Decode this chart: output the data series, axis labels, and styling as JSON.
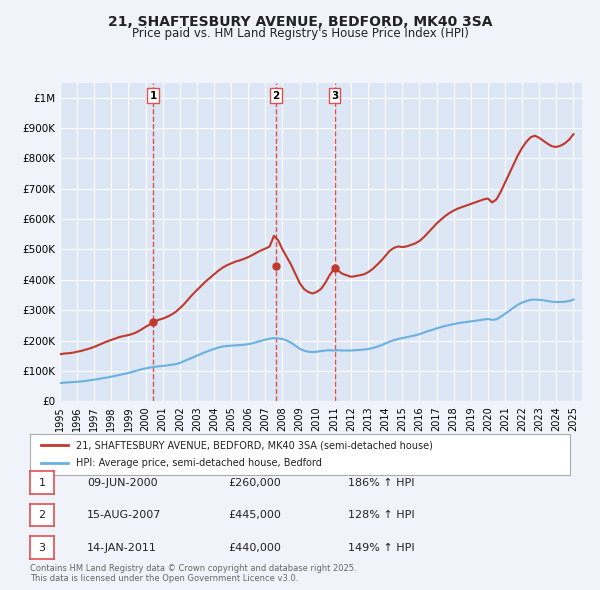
{
  "title": "21, SHAFTESBURY AVENUE, BEDFORD, MK40 3SA",
  "subtitle": "Price paid vs. HM Land Registry's House Price Index (HPI)",
  "background_color": "#f0f4fa",
  "plot_bg_color": "#dce6f5",
  "grid_color": "#ffffff",
  "xlim": [
    1995.0,
    2025.5
  ],
  "ylim": [
    0,
    1050000
  ],
  "yticks": [
    0,
    100000,
    200000,
    300000,
    400000,
    500000,
    600000,
    700000,
    800000,
    900000,
    1000000
  ],
  "ytick_labels": [
    "£0",
    "£100K",
    "£200K",
    "£300K",
    "£400K",
    "£500K",
    "£600K",
    "£700K",
    "£800K",
    "£900K",
    "£1M"
  ],
  "xticks": [
    1995,
    1996,
    1997,
    1998,
    1999,
    2000,
    2001,
    2002,
    2003,
    2004,
    2005,
    2006,
    2007,
    2008,
    2009,
    2010,
    2011,
    2012,
    2013,
    2014,
    2015,
    2016,
    2017,
    2018,
    2019,
    2020,
    2021,
    2022,
    2023,
    2024,
    2025
  ],
  "hpi_color": "#6ab0e0",
  "price_color": "#c0392b",
  "marker_color": "#c0392b",
  "vline_color": "#e05050",
  "legend1": "21, SHAFTESBURY AVENUE, BEDFORD, MK40 3SA (semi-detached house)",
  "legend2": "HPI: Average price, semi-detached house, Bedford",
  "transactions": [
    {
      "id": 1,
      "date": "09-JUN-2000",
      "year": 2000.44,
      "price": 260000,
      "pct": "186%",
      "dir": "↑"
    },
    {
      "id": 2,
      "date": "15-AUG-2007",
      "year": 2007.62,
      "price": 445000,
      "pct": "128%",
      "dir": "↑"
    },
    {
      "id": 3,
      "date": "14-JAN-2011",
      "year": 2011.04,
      "price": 440000,
      "pct": "149%",
      "dir": "↑"
    }
  ],
  "footnote": "Contains HM Land Registry data © Crown copyright and database right 2025.\nThis data is licensed under the Open Government Licence v3.0.",
  "hpi_data": {
    "x": [
      1995.0,
      1995.25,
      1995.5,
      1995.75,
      1996.0,
      1996.25,
      1996.5,
      1996.75,
      1997.0,
      1997.25,
      1997.5,
      1997.75,
      1998.0,
      1998.25,
      1998.5,
      1998.75,
      1999.0,
      1999.25,
      1999.5,
      1999.75,
      2000.0,
      2000.25,
      2000.5,
      2000.75,
      2001.0,
      2001.25,
      2001.5,
      2001.75,
      2002.0,
      2002.25,
      2002.5,
      2002.75,
      2003.0,
      2003.25,
      2003.5,
      2003.75,
      2004.0,
      2004.25,
      2004.5,
      2004.75,
      2005.0,
      2005.25,
      2005.5,
      2005.75,
      2006.0,
      2006.25,
      2006.5,
      2006.75,
      2007.0,
      2007.25,
      2007.5,
      2007.75,
      2008.0,
      2008.25,
      2008.5,
      2008.75,
      2009.0,
      2009.25,
      2009.5,
      2009.75,
      2010.0,
      2010.25,
      2010.5,
      2010.75,
      2011.0,
      2011.25,
      2011.5,
      2011.75,
      2012.0,
      2012.25,
      2012.5,
      2012.75,
      2013.0,
      2013.25,
      2013.5,
      2013.75,
      2014.0,
      2014.25,
      2014.5,
      2014.75,
      2015.0,
      2015.25,
      2015.5,
      2015.75,
      2016.0,
      2016.25,
      2016.5,
      2016.75,
      2017.0,
      2017.25,
      2017.5,
      2017.75,
      2018.0,
      2018.25,
      2018.5,
      2018.75,
      2019.0,
      2019.25,
      2019.5,
      2019.75,
      2020.0,
      2020.25,
      2020.5,
      2020.75,
      2021.0,
      2021.25,
      2021.5,
      2021.75,
      2022.0,
      2022.25,
      2022.5,
      2022.75,
      2023.0,
      2023.25,
      2023.5,
      2023.75,
      2024.0,
      2024.25,
      2024.5,
      2024.75,
      2025.0
    ],
    "y": [
      60000,
      61000,
      62000,
      63000,
      64000,
      65000,
      67000,
      69000,
      71000,
      73000,
      76000,
      78000,
      81000,
      84000,
      87000,
      90000,
      93000,
      97000,
      101000,
      105000,
      108000,
      111000,
      113000,
      115000,
      116000,
      118000,
      120000,
      122000,
      126000,
      132000,
      138000,
      144000,
      150000,
      156000,
      162000,
      167000,
      172000,
      177000,
      180000,
      182000,
      183000,
      184000,
      185000,
      186000,
      188000,
      191000,
      195000,
      199000,
      203000,
      206000,
      208000,
      207000,
      205000,
      200000,
      193000,
      183000,
      173000,
      167000,
      163000,
      162000,
      163000,
      165000,
      167000,
      168000,
      167000,
      168000,
      167000,
      167000,
      167000,
      168000,
      169000,
      170000,
      172000,
      175000,
      179000,
      184000,
      190000,
      196000,
      201000,
      205000,
      208000,
      211000,
      214000,
      217000,
      221000,
      226000,
      231000,
      235000,
      240000,
      244000,
      248000,
      251000,
      254000,
      257000,
      259000,
      261000,
      263000,
      265000,
      267000,
      269000,
      271000,
      268000,
      270000,
      278000,
      288000,
      298000,
      308000,
      318000,
      325000,
      330000,
      334000,
      335000,
      334000,
      333000,
      330000,
      328000,
      327000,
      327000,
      328000,
      330000,
      335000
    ]
  },
  "price_data": {
    "x": [
      1995.0,
      1995.25,
      1995.5,
      1995.75,
      1996.0,
      1996.25,
      1996.5,
      1996.75,
      1997.0,
      1997.25,
      1997.5,
      1997.75,
      1998.0,
      1998.25,
      1998.5,
      1998.75,
      1999.0,
      1999.25,
      1999.5,
      1999.75,
      2000.0,
      2000.25,
      2000.5,
      2000.75,
      2001.0,
      2001.25,
      2001.5,
      2001.75,
      2002.0,
      2002.25,
      2002.5,
      2002.75,
      2003.0,
      2003.25,
      2003.5,
      2003.75,
      2004.0,
      2004.25,
      2004.5,
      2004.75,
      2005.0,
      2005.25,
      2005.5,
      2005.75,
      2006.0,
      2006.25,
      2006.5,
      2006.75,
      2007.0,
      2007.25,
      2007.5,
      2007.75,
      2008.0,
      2008.25,
      2008.5,
      2008.75,
      2009.0,
      2009.25,
      2009.5,
      2009.75,
      2010.0,
      2010.25,
      2010.5,
      2010.75,
      2011.0,
      2011.25,
      2011.5,
      2011.75,
      2012.0,
      2012.25,
      2012.5,
      2012.75,
      2013.0,
      2013.25,
      2013.5,
      2013.75,
      2014.0,
      2014.25,
      2014.5,
      2014.75,
      2015.0,
      2015.25,
      2015.5,
      2015.75,
      2016.0,
      2016.25,
      2016.5,
      2016.75,
      2017.0,
      2017.25,
      2017.5,
      2017.75,
      2018.0,
      2018.25,
      2018.5,
      2018.75,
      2019.0,
      2019.25,
      2019.5,
      2019.75,
      2020.0,
      2020.25,
      2020.5,
      2020.75,
      2021.0,
      2021.25,
      2021.5,
      2021.75,
      2022.0,
      2022.25,
      2022.5,
      2022.75,
      2023.0,
      2023.25,
      2023.5,
      2023.75,
      2024.0,
      2024.25,
      2024.5,
      2024.75,
      2025.0
    ],
    "y": [
      155000,
      157000,
      158000,
      160000,
      163000,
      166000,
      170000,
      174000,
      179000,
      185000,
      191000,
      197000,
      202000,
      207000,
      212000,
      215000,
      218000,
      222000,
      228000,
      236000,
      245000,
      253000,
      262000,
      268000,
      272000,
      278000,
      285000,
      294000,
      306000,
      320000,
      336000,
      352000,
      366000,
      380000,
      394000,
      406000,
      418000,
      430000,
      440000,
      448000,
      454000,
      460000,
      464000,
      469000,
      475000,
      482000,
      490000,
      497000,
      503000,
      510000,
      545000,
      530000,
      500000,
      475000,
      450000,
      420000,
      390000,
      370000,
      360000,
      355000,
      360000,
      370000,
      390000,
      415000,
      435000,
      430000,
      420000,
      415000,
      410000,
      412000,
      415000,
      418000,
      425000,
      435000,
      448000,
      462000,
      478000,
      495000,
      505000,
      510000,
      508000,
      510000,
      515000,
      520000,
      528000,
      540000,
      555000,
      570000,
      585000,
      598000,
      610000,
      620000,
      628000,
      635000,
      640000,
      645000,
      650000,
      655000,
      660000,
      665000,
      668000,
      655000,
      665000,
      690000,
      720000,
      750000,
      780000,
      810000,
      835000,
      855000,
      870000,
      875000,
      868000,
      858000,
      848000,
      840000,
      838000,
      842000,
      850000,
      862000,
      880000
    ]
  }
}
